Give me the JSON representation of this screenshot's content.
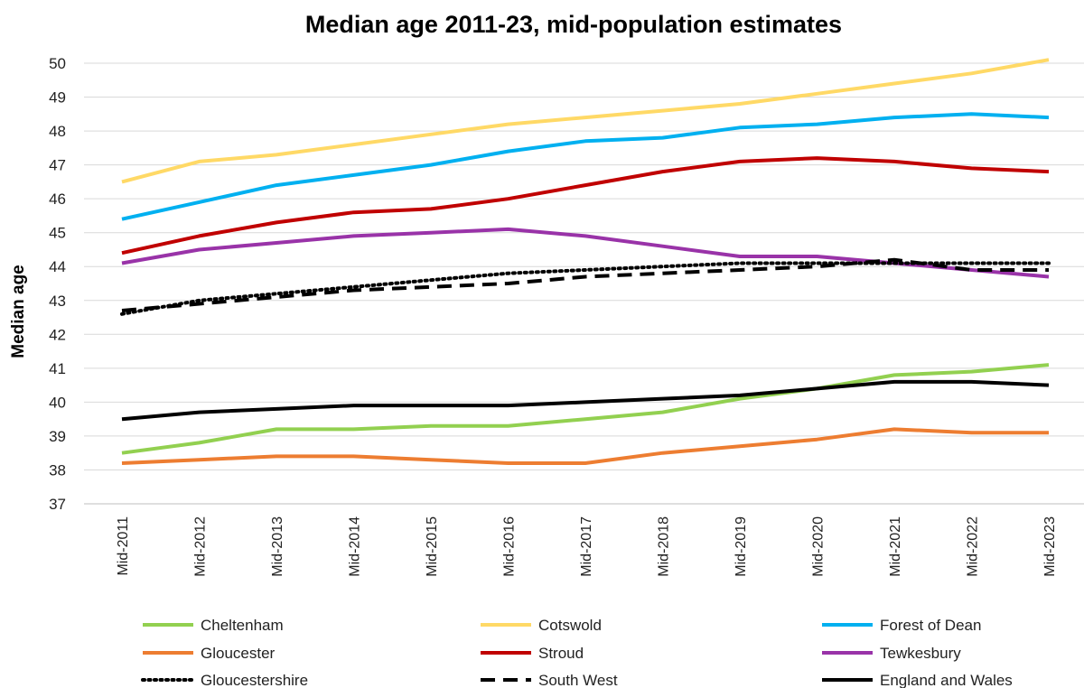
{
  "chart_data": {
    "type": "line",
    "title": "Median age 2011-23, mid-population estimates",
    "xlabel": "",
    "ylabel": "Median age",
    "ylim": [
      37,
      50
    ],
    "yticks": [
      "37",
      "38",
      "39",
      "40",
      "41",
      "42",
      "43",
      "44",
      "45",
      "46",
      "47",
      "48",
      "49",
      "50"
    ],
    "grid": true,
    "legend_placement": "bottom",
    "categories": [
      "Mid-2011",
      "Mid-2012",
      "Mid-2013",
      "Mid-2014",
      "Mid-2015",
      "Mid-2016",
      "Mid-2017",
      "Mid-2018",
      "Mid-2019",
      "Mid-2020",
      "Mid-2021",
      "Mid-2022",
      "Mid-2023"
    ],
    "series": [
      {
        "name": "Cheltenham",
        "color": "#92d050",
        "dash": "solid",
        "values": [
          38.5,
          38.8,
          39.2,
          39.2,
          39.3,
          39.3,
          39.5,
          39.7,
          40.1,
          40.4,
          40.8,
          40.9,
          41.1
        ]
      },
      {
        "name": "Cotswold",
        "color": "#ffd966",
        "dash": "solid",
        "values": [
          46.5,
          47.1,
          47.3,
          47.6,
          47.9,
          48.2,
          48.4,
          48.6,
          48.8,
          49.1,
          49.4,
          49.7,
          50.1
        ]
      },
      {
        "name": "Forest of Dean",
        "color": "#00b0f0",
        "dash": "solid",
        "values": [
          45.4,
          45.9,
          46.4,
          46.7,
          47.0,
          47.4,
          47.7,
          47.8,
          48.1,
          48.2,
          48.4,
          48.5,
          48.4
        ]
      },
      {
        "name": "Gloucester",
        "color": "#ed7d31",
        "dash": "solid",
        "values": [
          38.2,
          38.3,
          38.4,
          38.4,
          38.3,
          38.2,
          38.2,
          38.5,
          38.7,
          38.9,
          39.2,
          39.1,
          39.1
        ]
      },
      {
        "name": "Stroud",
        "color": "#c00000",
        "dash": "solid",
        "values": [
          44.4,
          44.9,
          45.3,
          45.6,
          45.7,
          46.0,
          46.4,
          46.8,
          47.1,
          47.2,
          47.1,
          46.9,
          46.8
        ]
      },
      {
        "name": "Tewkesbury",
        "color": "#9933a8",
        "dash": "solid",
        "values": [
          44.1,
          44.5,
          44.7,
          44.9,
          45.0,
          45.1,
          44.9,
          44.6,
          44.3,
          44.3,
          44.1,
          43.9,
          43.7
        ]
      },
      {
        "name": "Gloucestershire",
        "color": "#000000",
        "dash": "dotted",
        "values": [
          42.6,
          43.0,
          43.2,
          43.4,
          43.6,
          43.8,
          43.9,
          44.0,
          44.1,
          44.1,
          44.1,
          44.1,
          44.1
        ]
      },
      {
        "name": "South West",
        "color": "#000000",
        "dash": "dashed",
        "values": [
          42.7,
          42.9,
          43.1,
          43.3,
          43.4,
          43.5,
          43.7,
          43.8,
          43.9,
          44.0,
          44.2,
          43.9,
          43.9
        ]
      },
      {
        "name": "England and Wales",
        "color": "#000000",
        "dash": "solid",
        "values": [
          39.5,
          39.7,
          39.8,
          39.9,
          39.9,
          39.9,
          40.0,
          40.1,
          40.2,
          40.4,
          40.6,
          40.6,
          40.5
        ]
      }
    ]
  }
}
